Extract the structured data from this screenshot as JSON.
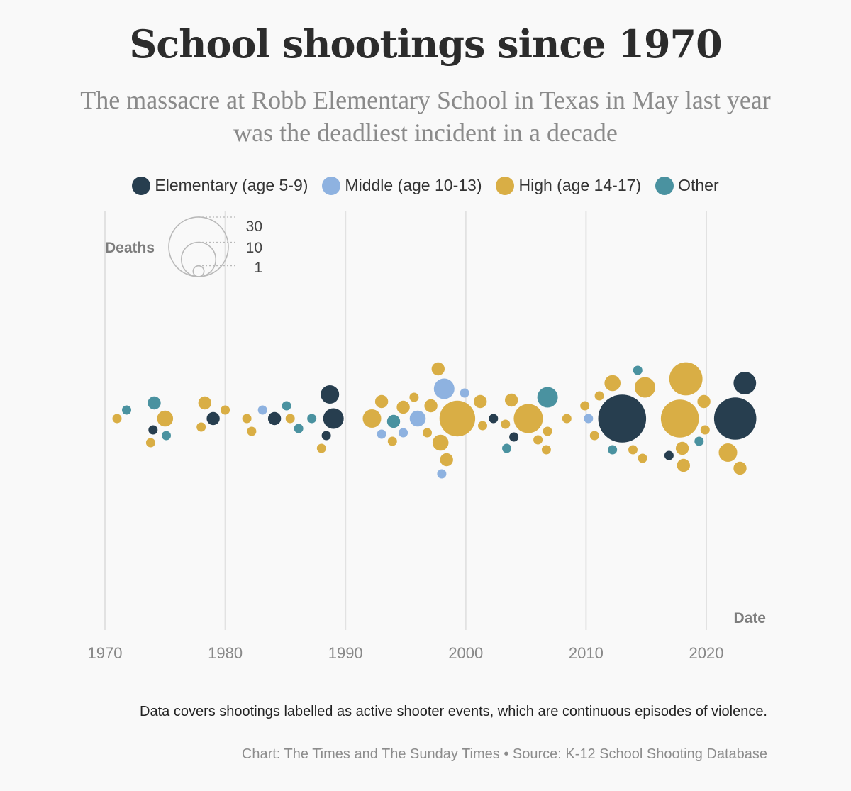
{
  "colors": {
    "elementary": "#273e4f",
    "middle": "#8eb2e0",
    "high": "#d9ae45",
    "other": "#4a92a0",
    "grid": "#e2e2e2",
    "axis_text": "#888888"
  },
  "chart_data": {
    "type": "scatter",
    "title": "School shootings since 1970",
    "subtitle": "The massacre at Robb Elementary School in Texas in May last year was the deadliest incident in a decade",
    "xlabel": "Date",
    "size_label": "Deaths",
    "xlim": [
      1970,
      2024
    ],
    "x_ticks": [
      1970,
      1980,
      1990,
      2000,
      2010,
      2020
    ],
    "size_legend": [
      {
        "label": "30",
        "deaths": 30
      },
      {
        "label": "10",
        "deaths": 10
      },
      {
        "label": "1",
        "deaths": 1
      }
    ],
    "legend": [
      {
        "key": "elementary",
        "label": "Elementary (age 5-9)"
      },
      {
        "key": "middle",
        "label": "Middle (age 10-13)"
      },
      {
        "key": "high",
        "label": "High (age 14-17)"
      },
      {
        "key": "other",
        "label": "Other"
      }
    ],
    "series": [
      {
        "name": "Elementary (age 5-9)",
        "key": "elementary",
        "points": [
          {
            "x": 1974.0,
            "deaths": 1
          },
          {
            "x": 1979.0,
            "deaths": 2
          },
          {
            "x": 1984.1,
            "deaths": 2
          },
          {
            "x": 1988.4,
            "deaths": 1
          },
          {
            "x": 1988.7,
            "deaths": 4
          },
          {
            "x": 1989.0,
            "deaths": 5
          },
          {
            "x": 2002.3,
            "deaths": 1
          },
          {
            "x": 2004.0,
            "deaths": 1
          },
          {
            "x": 2013.0,
            "deaths": 27
          },
          {
            "x": 2016.9,
            "deaths": 1
          },
          {
            "x": 2022.4,
            "deaths": 21
          },
          {
            "x": 2023.2,
            "deaths": 6
          }
        ]
      },
      {
        "name": "Middle (age 10-13)",
        "key": "middle",
        "points": [
          {
            "x": 1983.1,
            "deaths": 1
          },
          {
            "x": 1993.0,
            "deaths": 1
          },
          {
            "x": 1994.8,
            "deaths": 1
          },
          {
            "x": 1996.0,
            "deaths": 3
          },
          {
            "x": 1998.2,
            "deaths": 5
          },
          {
            "x": 1998.0,
            "deaths": 1
          },
          {
            "x": 1999.9,
            "deaths": 1
          },
          {
            "x": 2010.2,
            "deaths": 1
          }
        ]
      },
      {
        "name": "High (age 14-17)",
        "key": "high",
        "points": [
          {
            "x": 1971.0,
            "deaths": 1
          },
          {
            "x": 1973.8,
            "deaths": 1
          },
          {
            "x": 1975.0,
            "deaths": 3
          },
          {
            "x": 1978.3,
            "deaths": 2
          },
          {
            "x": 1978.0,
            "deaths": 1
          },
          {
            "x": 1980.0,
            "deaths": 1
          },
          {
            "x": 1981.8,
            "deaths": 1
          },
          {
            "x": 1982.2,
            "deaths": 1
          },
          {
            "x": 1985.4,
            "deaths": 1
          },
          {
            "x": 1988.0,
            "deaths": 1
          },
          {
            "x": 1992.2,
            "deaths": 4
          },
          {
            "x": 1993.0,
            "deaths": 2
          },
          {
            "x": 1993.9,
            "deaths": 1
          },
          {
            "x": 1994.8,
            "deaths": 2
          },
          {
            "x": 1995.7,
            "deaths": 1
          },
          {
            "x": 1996.8,
            "deaths": 1
          },
          {
            "x": 1997.1,
            "deaths": 2
          },
          {
            "x": 1997.9,
            "deaths": 3
          },
          {
            "x": 1998.4,
            "deaths": 2
          },
          {
            "x": 1999.3,
            "deaths": 15
          },
          {
            "x": 1997.7,
            "deaths": 2
          },
          {
            "x": 2001.2,
            "deaths": 2
          },
          {
            "x": 2001.4,
            "deaths": 1
          },
          {
            "x": 2003.3,
            "deaths": 1
          },
          {
            "x": 2003.8,
            "deaths": 2
          },
          {
            "x": 2005.2,
            "deaths": 10
          },
          {
            "x": 2006.0,
            "deaths": 1
          },
          {
            "x": 2006.8,
            "deaths": 1
          },
          {
            "x": 2006.7,
            "deaths": 1
          },
          {
            "x": 2008.4,
            "deaths": 1
          },
          {
            "x": 2009.9,
            "deaths": 1
          },
          {
            "x": 2010.7,
            "deaths": 1
          },
          {
            "x": 2011.1,
            "deaths": 1
          },
          {
            "x": 2012.2,
            "deaths": 3
          },
          {
            "x": 2013.9,
            "deaths": 1
          },
          {
            "x": 2014.7,
            "deaths": 1
          },
          {
            "x": 2014.9,
            "deaths": 5
          },
          {
            "x": 2018.0,
            "deaths": 2
          },
          {
            "x": 2018.3,
            "deaths": 13
          },
          {
            "x": 2017.8,
            "deaths": 17
          },
          {
            "x": 2018.1,
            "deaths": 2
          },
          {
            "x": 2019.8,
            "deaths": 2
          },
          {
            "x": 2019.9,
            "deaths": 1
          },
          {
            "x": 2021.8,
            "deaths": 4
          },
          {
            "x": 2022.8,
            "deaths": 2
          }
        ]
      },
      {
        "name": "Other",
        "key": "other",
        "points": [
          {
            "x": 1971.8,
            "deaths": 1
          },
          {
            "x": 1974.1,
            "deaths": 2
          },
          {
            "x": 1975.1,
            "deaths": 1
          },
          {
            "x": 1985.1,
            "deaths": 1
          },
          {
            "x": 1986.1,
            "deaths": 1
          },
          {
            "x": 1987.2,
            "deaths": 1
          },
          {
            "x": 1994.0,
            "deaths": 2
          },
          {
            "x": 2003.4,
            "deaths": 1
          },
          {
            "x": 2006.8,
            "deaths": 5
          },
          {
            "x": 2012.2,
            "deaths": 1
          },
          {
            "x": 2014.3,
            "deaths": 1
          },
          {
            "x": 2019.4,
            "deaths": 1
          }
        ]
      }
    ]
  },
  "footer": {
    "note": "Data covers shootings labelled as active shooter events, which are continuous episodes of violence.",
    "source": "Chart: The Times and The Sunday Times • Source: K-12 School Shooting Database"
  }
}
